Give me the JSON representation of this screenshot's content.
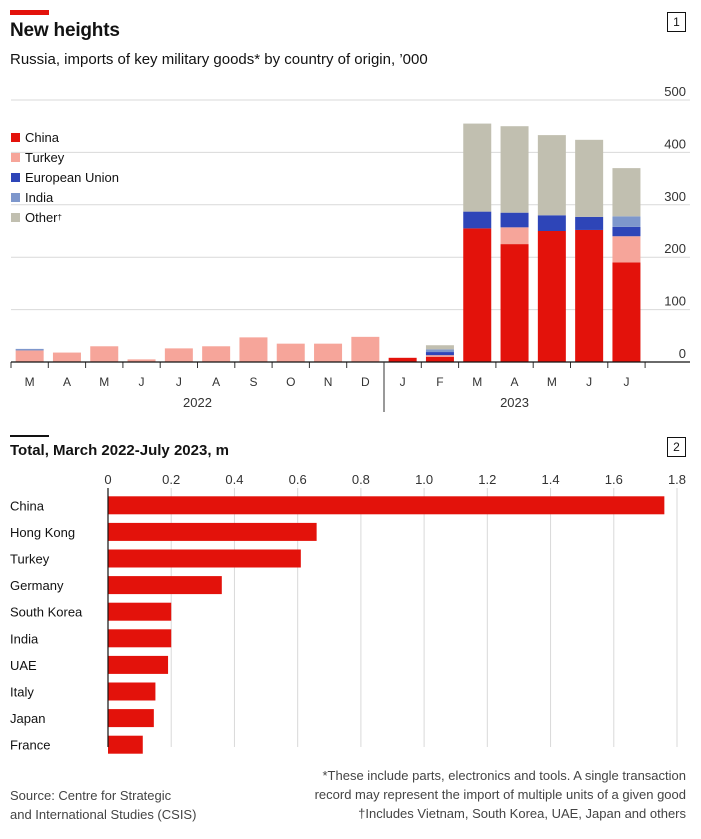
{
  "header": {
    "title": "New heights",
    "subtitle": "Russia, imports of key military goods* by country of origin, ’000",
    "chart1_number": "1",
    "chart2_title": "Total, March 2022-July 2023, m",
    "chart2_number": "2"
  },
  "footer": {
    "source_line1": "Source: Centre for Strategic",
    "source_line2": "and International Studies (CSIS)",
    "note_line1": "*These include parts, electronics and tools. A single transaction",
    "note_line2": "record may represent the import of multiple units of a given good",
    "note_line3": "†Includes Vietnam, South Korea, UAE, Japan and others"
  },
  "colors": {
    "China": "#e3120b",
    "Turkey": "#f6a59a",
    "European Union": "#2e45b8",
    "India": "#7e97cc",
    "Other": "#c1bfb0",
    "bar2": "#e3120b"
  },
  "chart_data": [
    {
      "type": "bar",
      "stacked": true,
      "categories": [
        "M",
        "A",
        "M",
        "J",
        "J",
        "A",
        "S",
        "O",
        "N",
        "D",
        "J",
        "F",
        "M",
        "A",
        "M",
        "J",
        "J"
      ],
      "year_labels": [
        {
          "label": "2022",
          "span": [
            0,
            9
          ]
        },
        {
          "label": "2023",
          "span": [
            10,
            16
          ]
        }
      ],
      "ylim": [
        0,
        500
      ],
      "yticks": [
        0,
        100,
        200,
        300,
        400,
        500
      ],
      "grid": true,
      "y_axis_side": "right",
      "legend_position": "top-left",
      "series": [
        {
          "name": "China",
          "values": [
            0,
            0,
            0,
            0,
            0,
            0,
            0,
            0,
            0,
            0,
            8,
            10,
            255,
            225,
            250,
            252,
            190
          ]
        },
        {
          "name": "Turkey",
          "values": [
            22,
            18,
            30,
            5,
            26,
            30,
            47,
            35,
            35,
            48,
            0,
            3,
            0,
            32,
            0,
            0,
            50
          ]
        },
        {
          "name": "European Union",
          "values": [
            0,
            0,
            0,
            0,
            0,
            0,
            0,
            0,
            0,
            0,
            0,
            6,
            32,
            28,
            30,
            25,
            18
          ]
        },
        {
          "name": "India",
          "values": [
            3,
            0,
            0,
            0,
            0,
            0,
            0,
            0,
            0,
            0,
            0,
            5,
            0,
            0,
            0,
            0,
            20
          ]
        },
        {
          "name": "Other",
          "values": [
            0,
            0,
            0,
            0,
            0,
            0,
            0,
            0,
            0,
            0,
            0,
            8,
            168,
            165,
            153,
            147,
            92
          ]
        }
      ],
      "legend_labels": [
        "China",
        "Turkey",
        "European Union",
        "India",
        "Other"
      ]
    },
    {
      "type": "bar",
      "orientation": "horizontal",
      "categories": [
        "China",
        "Hong Kong",
        "Turkey",
        "Germany",
        "South Korea",
        "India",
        "UAE",
        "Italy",
        "Japan",
        "France"
      ],
      "values": [
        1.76,
        0.66,
        0.61,
        0.36,
        0.2,
        0.2,
        0.19,
        0.15,
        0.145,
        0.11
      ],
      "xlim": [
        0,
        1.8
      ],
      "xticks": [
        0,
        0.2,
        0.4,
        0.6,
        0.8,
        1.0,
        1.2,
        1.4,
        1.6,
        1.8
      ],
      "xtick_labels": [
        "0",
        "0.2",
        "0.4",
        "0.6",
        "0.8",
        "1.0",
        "1.2",
        "1.4",
        "1.6",
        "1.8"
      ],
      "grid": true
    }
  ]
}
